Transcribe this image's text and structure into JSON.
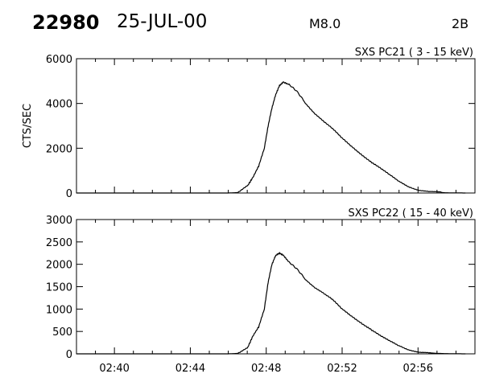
{
  "header": {
    "event_id": "22980",
    "date": "25-JUL-00",
    "flare_class": "M8.0",
    "h_alpha_class": "2B"
  },
  "chart_data": [
    {
      "type": "line",
      "title": "SXS PC21  (  3 - 15 keV)",
      "ylabel": "CTS/SEC",
      "ylim": [
        0,
        6000
      ],
      "yticks": [
        0,
        2000,
        4000,
        6000
      ],
      "xlim": [
        "02:38",
        "02:59"
      ],
      "xtick_labels": [
        "02:40",
        "02:44",
        "02:48",
        "02:52",
        "02:56"
      ],
      "x": [
        "02:46",
        "02:46.5",
        "02:47",
        "02:47.3",
        "02:47.6",
        "02:47.9",
        "02:48.1",
        "02:48.3",
        "02:48.5",
        "02:48.7",
        "02:48.9",
        "02:49.2",
        "02:49.6",
        "02:50",
        "02:50.5",
        "02:51",
        "02:51.5",
        "02:52",
        "02:52.5",
        "02:53",
        "02:53.5",
        "02:54",
        "02:54.5",
        "02:55",
        "02:55.5",
        "02:56",
        "02:56.5",
        "02:57",
        "02:57.5",
        "02:58",
        "02:58.5"
      ],
      "series": [
        {
          "values": [
            0,
            20,
            300,
            700,
            1200,
            2000,
            3000,
            3800,
            4400,
            4800,
            4950,
            4850,
            4550,
            4100,
            3600,
            3200,
            2850,
            2450,
            2100,
            1750,
            1400,
            1100,
            800,
            520,
            300,
            150,
            70,
            30,
            10,
            5,
            0
          ]
        }
      ]
    },
    {
      "type": "line",
      "title": "SXS PC22  ( 15 - 40 keV)",
      "ylabel": "",
      "ylim": [
        0,
        3000
      ],
      "yticks": [
        0,
        500,
        1000,
        1500,
        2000,
        2500,
        3000
      ],
      "xlim": [
        "02:38",
        "02:59"
      ],
      "xtick_labels": [
        "02:40",
        "02:44",
        "02:48",
        "02:52",
        "02:56"
      ],
      "x": [
        "02:46",
        "02:46.5",
        "02:47",
        "02:47.3",
        "02:47.6",
        "02:47.9",
        "02:48.1",
        "02:48.3",
        "02:48.5",
        "02:48.7",
        "02:48.9",
        "02:49.2",
        "02:49.6",
        "02:50",
        "02:50.5",
        "02:51",
        "02:51.5",
        "02:52",
        "02:52.5",
        "02:53",
        "02:53.5",
        "02:54",
        "02:54.5",
        "02:55",
        "02:55.5",
        "02:56",
        "02:56.5",
        "02:57",
        "02:57.5",
        "02:58",
        "02:58.5"
      ],
      "series": [
        {
          "values": [
            0,
            10,
            120,
            400,
            600,
            1000,
            1600,
            2000,
            2200,
            2250,
            2200,
            2050,
            1900,
            1700,
            1500,
            1350,
            1200,
            1000,
            850,
            700,
            550,
            400,
            280,
            180,
            100,
            50,
            25,
            10,
            5,
            2,
            0
          ]
        }
      ]
    }
  ]
}
